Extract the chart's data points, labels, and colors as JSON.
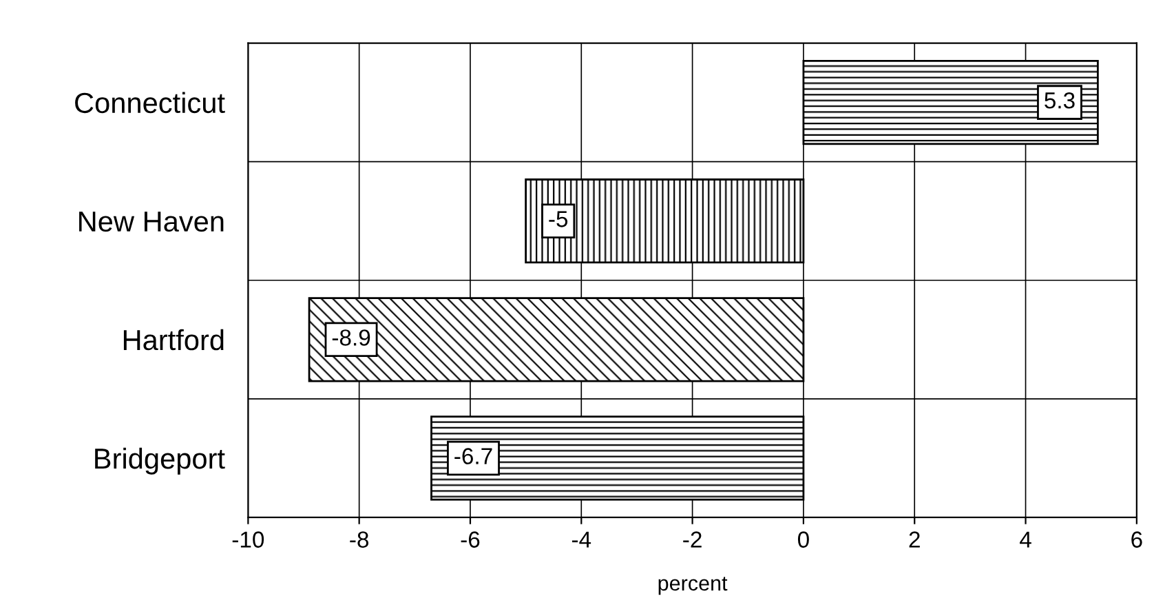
{
  "chart_data": {
    "type": "bar",
    "orientation": "horizontal",
    "categories": [
      "Connecticut",
      "New Haven",
      "Hartford",
      "Bridgeport"
    ],
    "values": [
      5.3,
      -5,
      -8.9,
      -6.7
    ],
    "colors": [
      "#000000",
      "#000000",
      "#000000",
      "#000000"
    ],
    "xlabel": "percent",
    "xlim": [
      -10,
      6
    ],
    "xticks": [
      -10,
      -8,
      -6,
      -4,
      -2,
      0,
      2,
      4,
      6
    ],
    "grid": true,
    "data_labels": true
  }
}
